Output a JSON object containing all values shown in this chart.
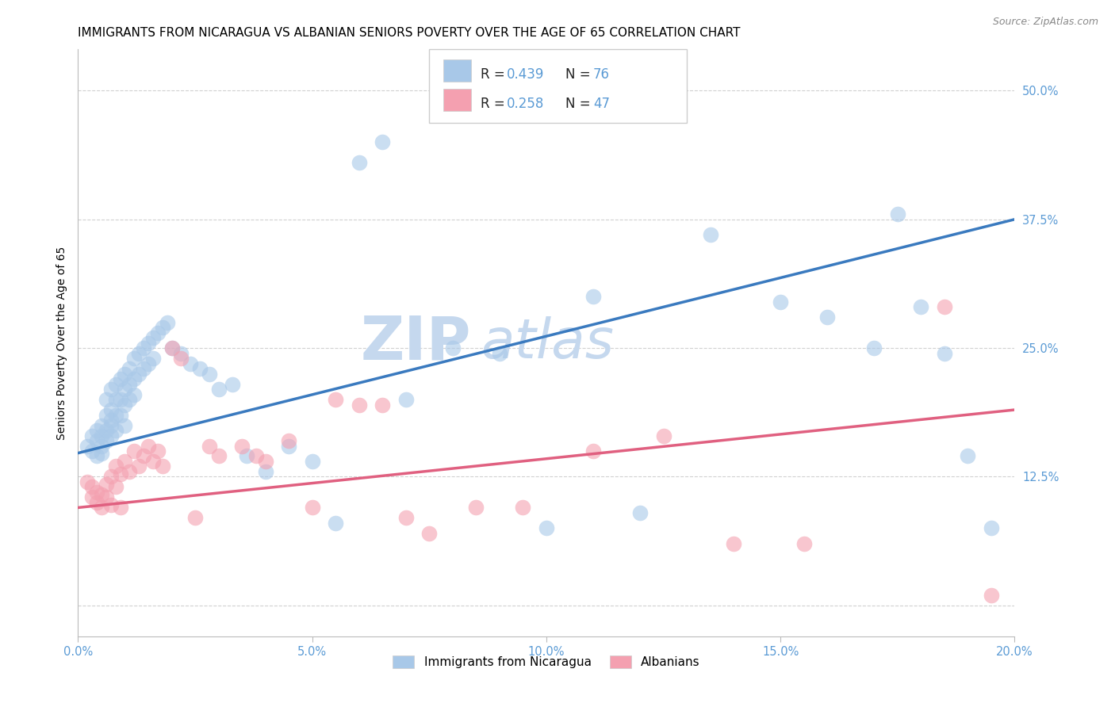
{
  "title": "IMMIGRANTS FROM NICARAGUA VS ALBANIAN SENIORS POVERTY OVER THE AGE OF 65 CORRELATION CHART",
  "source": "Source: ZipAtlas.com",
  "ylabel_label": "Seniors Poverty Over the Age of 65",
  "xlim": [
    0.0,
    0.2
  ],
  "ylim": [
    -0.03,
    0.54
  ],
  "xticks": [
    0.0,
    0.05,
    0.1,
    0.15,
    0.2
  ],
  "xtick_labels": [
    "0.0%",
    "5.0%",
    "10.0%",
    "15.0%",
    "20.0%"
  ],
  "yticks": [
    0.0,
    0.125,
    0.25,
    0.375,
    0.5
  ],
  "ytick_labels": [
    "",
    "12.5%",
    "25.0%",
    "37.5%",
    "50.0%"
  ],
  "blue_R": 0.439,
  "blue_N": 76,
  "pink_R": 0.258,
  "pink_N": 47,
  "blue_color": "#a8c8e8",
  "pink_color": "#f4a0b0",
  "blue_line_color": "#3a7abf",
  "pink_line_color": "#e06080",
  "tick_color": "#5b9bd5",
  "watermark_zip": "ZIP",
  "watermark_atlas": "atlas",
  "legend_label_blue": "Immigrants from Nicaragua",
  "legend_label_pink": "Albanians",
  "blue_scatter_x": [
    0.002,
    0.003,
    0.003,
    0.004,
    0.004,
    0.004,
    0.005,
    0.005,
    0.005,
    0.005,
    0.006,
    0.006,
    0.006,
    0.006,
    0.007,
    0.007,
    0.007,
    0.007,
    0.007,
    0.008,
    0.008,
    0.008,
    0.008,
    0.009,
    0.009,
    0.009,
    0.01,
    0.01,
    0.01,
    0.01,
    0.011,
    0.011,
    0.011,
    0.012,
    0.012,
    0.012,
    0.013,
    0.013,
    0.014,
    0.014,
    0.015,
    0.015,
    0.016,
    0.016,
    0.017,
    0.018,
    0.019,
    0.02,
    0.022,
    0.024,
    0.026,
    0.028,
    0.03,
    0.033,
    0.036,
    0.04,
    0.045,
    0.05,
    0.055,
    0.06,
    0.065,
    0.07,
    0.08,
    0.09,
    0.1,
    0.11,
    0.12,
    0.135,
    0.15,
    0.16,
    0.17,
    0.175,
    0.18,
    0.185,
    0.19,
    0.195
  ],
  "blue_scatter_y": [
    0.155,
    0.165,
    0.15,
    0.16,
    0.145,
    0.17,
    0.155,
    0.165,
    0.148,
    0.175,
    0.17,
    0.185,
    0.2,
    0.16,
    0.175,
    0.19,
    0.21,
    0.165,
    0.18,
    0.2,
    0.215,
    0.185,
    0.17,
    0.22,
    0.2,
    0.185,
    0.225,
    0.21,
    0.195,
    0.175,
    0.23,
    0.215,
    0.2,
    0.24,
    0.22,
    0.205,
    0.245,
    0.225,
    0.25,
    0.23,
    0.255,
    0.235,
    0.26,
    0.24,
    0.265,
    0.27,
    0.275,
    0.25,
    0.245,
    0.235,
    0.23,
    0.225,
    0.21,
    0.215,
    0.145,
    0.13,
    0.155,
    0.14,
    0.08,
    0.43,
    0.45,
    0.2,
    0.25,
    0.245,
    0.075,
    0.3,
    0.09,
    0.36,
    0.295,
    0.28,
    0.25,
    0.38,
    0.29,
    0.245,
    0.145,
    0.075
  ],
  "pink_scatter_x": [
    0.002,
    0.003,
    0.003,
    0.004,
    0.004,
    0.005,
    0.005,
    0.006,
    0.006,
    0.007,
    0.007,
    0.008,
    0.008,
    0.009,
    0.009,
    0.01,
    0.011,
    0.012,
    0.013,
    0.014,
    0.015,
    0.016,
    0.017,
    0.018,
    0.02,
    0.022,
    0.025,
    0.028,
    0.03,
    0.035,
    0.038,
    0.04,
    0.045,
    0.05,
    0.055,
    0.06,
    0.065,
    0.07,
    0.075,
    0.085,
    0.095,
    0.11,
    0.125,
    0.14,
    0.155,
    0.185,
    0.195
  ],
  "pink_scatter_y": [
    0.12,
    0.115,
    0.105,
    0.11,
    0.1,
    0.108,
    0.095,
    0.118,
    0.105,
    0.125,
    0.098,
    0.135,
    0.115,
    0.128,
    0.095,
    0.14,
    0.13,
    0.15,
    0.135,
    0.145,
    0.155,
    0.14,
    0.15,
    0.135,
    0.25,
    0.24,
    0.085,
    0.155,
    0.145,
    0.155,
    0.145,
    0.14,
    0.16,
    0.095,
    0.2,
    0.195,
    0.195,
    0.085,
    0.07,
    0.095,
    0.095,
    0.15,
    0.165,
    0.06,
    0.06,
    0.29,
    0.01
  ],
  "blue_line_x0": 0.0,
  "blue_line_y0": 0.148,
  "blue_line_x1": 0.2,
  "blue_line_y1": 0.375,
  "pink_line_x0": 0.0,
  "pink_line_y0": 0.095,
  "pink_line_x1": 0.2,
  "pink_line_y1": 0.19,
  "background_color": "#ffffff",
  "grid_color": "#cccccc",
  "title_fontsize": 11,
  "axis_label_fontsize": 10,
  "tick_fontsize": 10.5,
  "watermark_color": "#c5d8ee",
  "watermark_fontsize_zip": 55,
  "watermark_fontsize_atlas": 50
}
